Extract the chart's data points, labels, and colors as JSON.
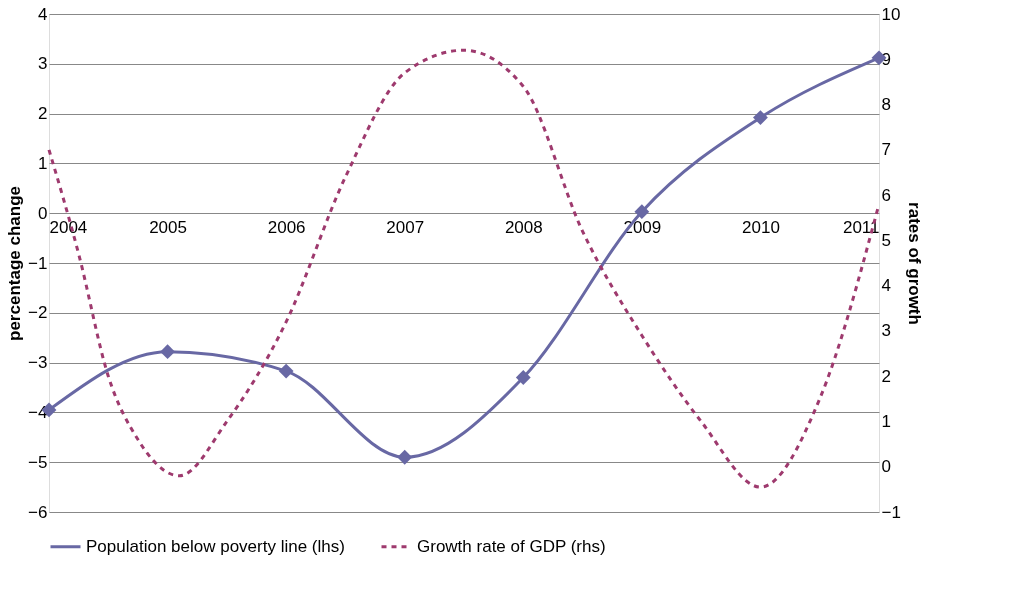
{
  "chart_data": {
    "type": "line",
    "ylabel": "percentage change",
    "y2label": "rates of growth",
    "xlim": [
      2004,
      2011
    ],
    "xticks": [
      2004,
      2005,
      2006,
      2007,
      2008,
      2009,
      2010,
      2011
    ],
    "ylim": [
      -6,
      4
    ],
    "yticks": [
      -6,
      -5,
      -4,
      -3,
      -2,
      -1,
      0,
      1,
      2,
      3,
      4
    ],
    "y2lim": [
      -1,
      10
    ],
    "y2ticks": [
      -1,
      0,
      1,
      2,
      3,
      4,
      5,
      6,
      7,
      8,
      9,
      10
    ],
    "grid": "y",
    "legend": "bottom",
    "series": [
      {
        "name": "Population below poverty line (lhs)",
        "color": "#6868a4",
        "marker": "diamond",
        "line_style": "solid",
        "x": [
          2004,
          2005,
          2006,
          2007,
          2008,
          2009,
          2010,
          2011
        ],
        "values": [
          -3.95,
          -2.78,
          -3.17,
          -4.9,
          -3.3,
          0.03,
          1.92,
          3.12
        ]
      },
      {
        "name": "Growth rate of GDP (rhs)",
        "color": "#9e3a6e",
        "marker": "none",
        "line_style": "dashed",
        "axis": "y2",
        "x": [
          2004,
          2004.25,
          2004.5,
          2004.75,
          2005.1,
          2005.5,
          2006,
          2006.5,
          2007,
          2007.5,
          2008,
          2008.5,
          2009,
          2009.5,
          2010,
          2010.5,
          2011
        ],
        "values": [
          7.0,
          4.7,
          2.0,
          0.6,
          -0.2,
          1.0,
          3.2,
          6.4,
          8.7,
          9.2,
          8.4,
          5.2,
          2.9,
          1.0,
          -0.45,
          1.5,
          5.8
        ]
      }
    ]
  }
}
